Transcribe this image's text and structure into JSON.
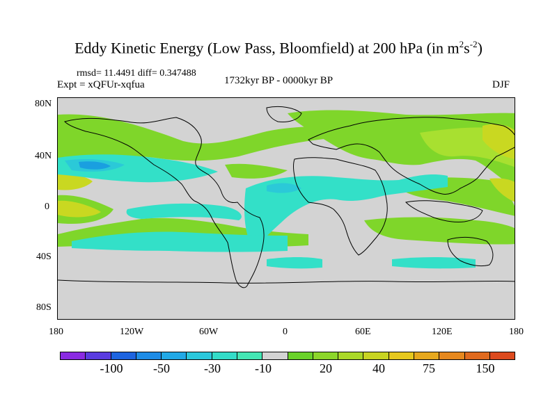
{
  "title": {
    "main": "Eddy Kinetic Energy (Low Pass, Bloomfield) at 200 hPa (in m",
    "sup1": "2",
    "mid": "s",
    "sup2": "-2",
    "end": ")"
  },
  "stats": "rmsd= 11.4491 diff= 0.347488",
  "expt": "Expt = xQFUr-xqfua",
  "period": "1732kyr BP - 0000kyr BP",
  "season": "DJF",
  "axes": {
    "y_ticks": [
      "80N",
      "40N",
      "0",
      "40S",
      "80S"
    ],
    "x_ticks": [
      "180",
      "120W",
      "60W",
      "0",
      "60E",
      "120E",
      "180"
    ]
  },
  "colors": {
    "land": "#d3d3d3",
    "green": "#7fd62a",
    "lightgreen": "#a8e030",
    "yellowgreen": "#c9d821",
    "cyan": "#33e0c8",
    "teal": "#2bc9d8",
    "blue": "#1a9fe0"
  },
  "colorbar": {
    "colors": [
      "#8a2be2",
      "#5a3ce0",
      "#1e64e0",
      "#1e8ce6",
      "#22a9e6",
      "#2bc8dc",
      "#33dcc8",
      "#44e6b4",
      "#d3d3d3",
      "#6ad22a",
      "#8cd62a",
      "#aad828",
      "#c8d422",
      "#e6c81e",
      "#e6a81e",
      "#e6881e",
      "#e06a1e",
      "#dc4a1e"
    ],
    "labels": [
      "-100",
      "-50",
      "-30",
      "-10",
      "20",
      "40",
      "75",
      "150"
    ]
  }
}
